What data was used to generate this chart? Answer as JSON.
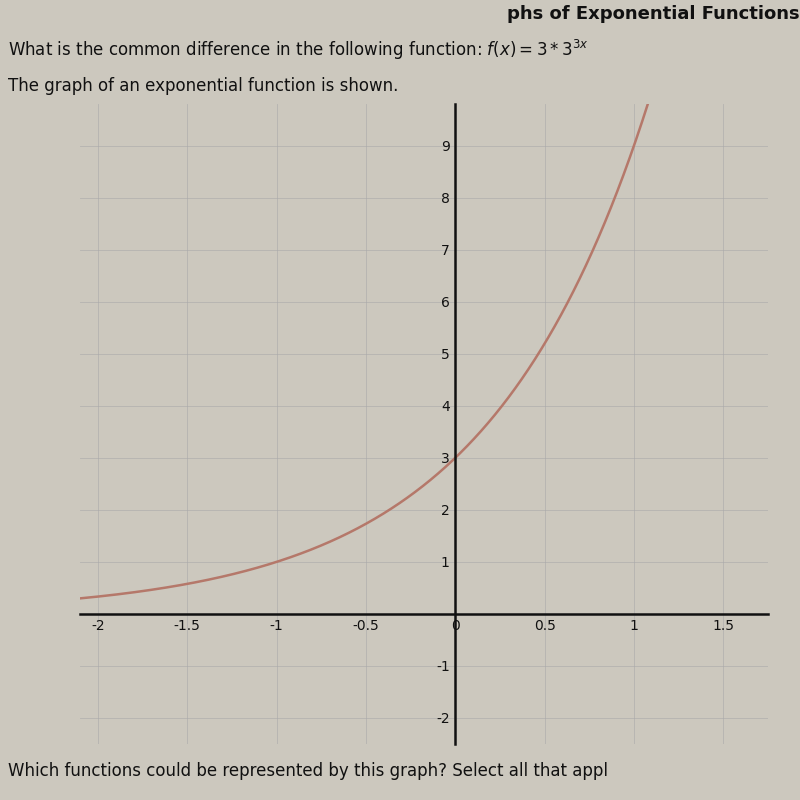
{
  "xlim": [
    -2.1,
    1.75
  ],
  "ylim": [
    -2.5,
    9.8
  ],
  "xticks": [
    -2,
    -1.5,
    -1,
    -0.5,
    0,
    0.5,
    1,
    1.5
  ],
  "yticks": [
    -2,
    -1,
    1,
    2,
    3,
    4,
    5,
    6,
    7,
    8,
    9
  ],
  "curve_color": "#b5786a",
  "curve_linewidth": 1.8,
  "background_color": "#ccc8be",
  "grid_color": "#aaaaaa",
  "axis_color": "#111111",
  "text_color": "#111111",
  "title_top": "phs of Exponential Functions",
  "question_text": "What is the common difference in the following function: f(x) = 3 * 3^{3x}",
  "subtitle_text": "The graph of an exponential function is shown.",
  "bottom_text": "Which functions could be represented by this graph? Select all that appl",
  "font_size_title": 13,
  "font_size_question": 12,
  "font_size_subtitle": 12,
  "font_size_bottom": 12
}
